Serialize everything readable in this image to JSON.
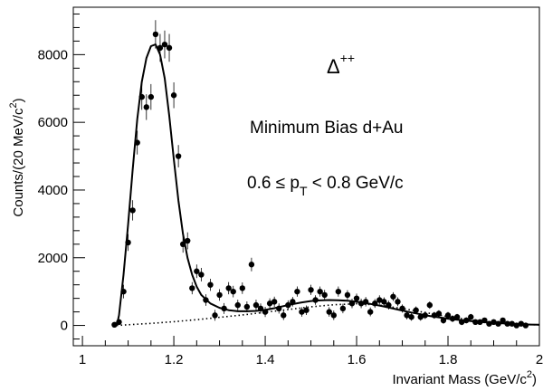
{
  "chart_data": {
    "type": "scatter",
    "title": "",
    "xlabel": "Invariant Mass (GeV/c",
    "xlabel_sup": "2",
    "xlabel_tail": ")",
    "ylabel": "Counts/(20 MeV/c",
    "ylabel_sup": "2",
    "ylabel_tail": ")",
    "xlim": [
      0.98,
      2.0
    ],
    "ylim": [
      -600,
      9400
    ],
    "x_ticks": [
      1,
      1.2,
      1.4,
      1.6,
      1.8,
      2
    ],
    "x_tick_labels": [
      "1",
      "1.2",
      "1.4",
      "1.6",
      "1.8",
      "2"
    ],
    "y_ticks": [
      0,
      2000,
      4000,
      6000,
      8000
    ],
    "y_tick_labels": [
      "0",
      "2000",
      "4000",
      "6000",
      "8000"
    ],
    "grid": false,
    "annotations": {
      "particle_base": "Δ",
      "particle_sup": "++",
      "line1": "Minimum Bias d+Au",
      "line2_prefix": "0.6 ≤ p",
      "line2_sub": "T",
      "line2_suffix": " < 0.8 GeV/c"
    },
    "series": [
      {
        "style": "points-with-errors",
        "x": [
          1.07,
          1.08,
          1.09,
          1.1,
          1.11,
          1.12,
          1.13,
          1.14,
          1.15,
          1.16,
          1.17,
          1.18,
          1.19,
          1.2,
          1.21,
          1.22,
          1.23,
          1.24,
          1.25,
          1.26,
          1.27,
          1.28,
          1.29,
          1.3,
          1.31,
          1.32,
          1.33,
          1.34,
          1.35,
          1.36,
          1.37,
          1.38,
          1.39,
          1.4,
          1.41,
          1.42,
          1.43,
          1.44,
          1.45,
          1.46,
          1.47,
          1.48,
          1.49,
          1.5,
          1.51,
          1.52,
          1.53,
          1.54,
          1.55,
          1.56,
          1.57,
          1.58,
          1.59,
          1.6,
          1.61,
          1.62,
          1.63,
          1.64,
          1.65,
          1.66,
          1.67,
          1.68,
          1.69,
          1.7,
          1.71,
          1.72,
          1.73,
          1.74,
          1.75,
          1.76,
          1.77,
          1.78,
          1.79,
          1.8,
          1.81,
          1.82,
          1.83,
          1.84,
          1.85,
          1.86,
          1.87,
          1.88,
          1.89,
          1.9,
          1.91,
          1.92,
          1.93,
          1.94,
          1.95,
          1.96,
          1.97
        ],
        "y": [
          20,
          100,
          1000,
          2450,
          3400,
          5400,
          6750,
          6450,
          6750,
          8600,
          8200,
          8300,
          8200,
          6800,
          5000,
          2400,
          2500,
          1100,
          1600,
          1500,
          750,
          1200,
          300,
          900,
          500,
          1100,
          1000,
          600,
          1100,
          550,
          1800,
          600,
          500,
          400,
          650,
          700,
          500,
          300,
          600,
          700,
          1000,
          400,
          450,
          1050,
          750,
          1000,
          900,
          400,
          300,
          1000,
          500,
          900,
          650,
          800,
          650,
          700,
          400,
          650,
          750,
          700,
          600,
          850,
          700,
          500,
          300,
          250,
          450,
          250,
          300,
          600,
          300,
          350,
          150,
          300,
          200,
          250,
          100,
          150,
          250,
          100,
          100,
          150,
          50,
          100,
          50,
          150,
          50,
          50,
          0,
          50,
          0
        ],
        "err": [
          60,
          90,
          200,
          250,
          300,
          350,
          380,
          380,
          380,
          420,
          410,
          410,
          410,
          380,
          330,
          250,
          250,
          180,
          200,
          200,
          170,
          180,
          160,
          170,
          160,
          180,
          170,
          160,
          170,
          160,
          200,
          160,
          150,
          150,
          150,
          150,
          150,
          140,
          140,
          140,
          150,
          140,
          140,
          150,
          140,
          150,
          150,
          140,
          140,
          150,
          140,
          140,
          140,
          140,
          140,
          140,
          130,
          130,
          140,
          130,
          130,
          130,
          130,
          120,
          120,
          110,
          110,
          110,
          110,
          110,
          100,
          100,
          100,
          100,
          100,
          90,
          90,
          90,
          90,
          80,
          80,
          80,
          80,
          80,
          70,
          70,
          70,
          70,
          60,
          60,
          60
        ]
      }
    ],
    "fit_curve": {
      "style": "solid",
      "x": [
        1.075,
        1.08,
        1.09,
        1.1,
        1.11,
        1.12,
        1.13,
        1.14,
        1.15,
        1.16,
        1.17,
        1.18,
        1.19,
        1.2,
        1.21,
        1.22,
        1.23,
        1.24,
        1.25,
        1.26,
        1.28,
        1.3,
        1.32,
        1.34,
        1.36,
        1.38,
        1.4,
        1.42,
        1.44,
        1.46,
        1.48,
        1.5,
        1.52,
        1.54,
        1.56,
        1.58,
        1.6,
        1.62,
        1.64,
        1.66,
        1.68,
        1.7,
        1.72,
        1.74,
        1.76,
        1.78,
        1.8,
        1.82,
        1.84,
        1.86,
        1.88,
        1.9,
        1.92,
        1.94,
        1.96,
        1.98,
        2.0
      ],
      "y": [
        0,
        300,
        1500,
        3000,
        4600,
        6100,
        7200,
        7900,
        8250,
        8300,
        8000,
        7300,
        6200,
        4900,
        3700,
        2700,
        2000,
        1500,
        1150,
        900,
        650,
        520,
        450,
        420,
        420,
        430,
        460,
        510,
        570,
        630,
        680,
        720,
        740,
        750,
        745,
        730,
        700,
        660,
        610,
        560,
        500,
        440,
        380,
        330,
        280,
        240,
        200,
        170,
        140,
        115,
        95,
        75,
        60,
        45,
        35,
        25,
        20
      ]
    },
    "background_curve": {
      "style": "dotted",
      "x": [
        1.075,
        1.1,
        1.15,
        1.2,
        1.25,
        1.3,
        1.35,
        1.4,
        1.45,
        1.5,
        1.55,
        1.6,
        1.65,
        1.7,
        1.75,
        1.8,
        1.85,
        1.9,
        1.95,
        2.0
      ],
      "y": [
        0,
        20,
        60,
        110,
        170,
        240,
        310,
        390,
        470,
        550,
        610,
        640,
        600,
        500,
        380,
        260,
        160,
        90,
        40,
        15
      ]
    }
  }
}
